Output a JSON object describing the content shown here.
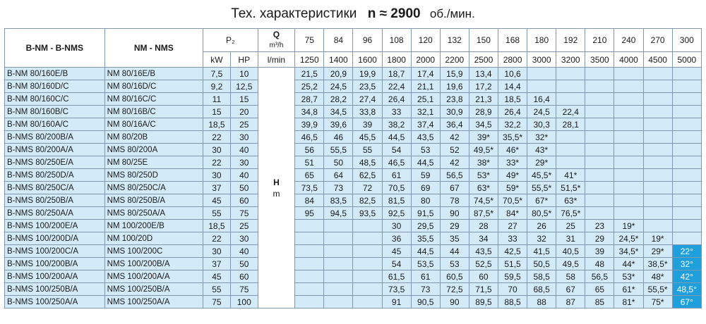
{
  "title": {
    "main": "Тех. характеристики",
    "rpm": "n ≈ 2900",
    "unit": "об./мин."
  },
  "header": {
    "model1": "B-NM - B-NMS",
    "model2": "NM - NMS",
    "p2": "P₂",
    "kw": "kW",
    "hp": "HP",
    "q": "Q",
    "q_unit": "m³/h",
    "lmin": "l/min",
    "h": "H",
    "h_unit": "m",
    "q_m3h": [
      "75",
      "84",
      "96",
      "108",
      "120",
      "132",
      "150",
      "168",
      "180",
      "192",
      "210",
      "240",
      "270",
      "300"
    ],
    "q_lmin": [
      "1250",
      "1400",
      "1600",
      "1800",
      "2000",
      "2200",
      "2500",
      "2800",
      "3000",
      "3200",
      "3500",
      "4000",
      "4500",
      "5000"
    ]
  },
  "highlight_color": "#1fa0dc",
  "rows": [
    {
      "m1": "B-NM 80/160E/B",
      "m2": "NM   80/16E/B",
      "kw": "7,5",
      "hp": "10",
      "v": [
        "21,5",
        "20,9",
        "19,9",
        "18,7",
        "17,4",
        "15,9",
        "13,4",
        "10,6",
        "",
        "",
        "",
        "",
        "",
        ""
      ]
    },
    {
      "m1": "B-NM 80/160D/C",
      "m2": "NM   80/16D/C",
      "kw": "9,2",
      "hp": "12,5",
      "v": [
        "25,2",
        "24,5",
        "23,5",
        "22,4",
        "21,1",
        "19,6",
        "17,2",
        "14,4",
        "",
        "",
        "",
        "",
        "",
        ""
      ]
    },
    {
      "m1": "B-NM 80/160C/C",
      "m2": "NM   80/16C/C",
      "kw": "11",
      "hp": "15",
      "v": [
        "28,7",
        "28,2",
        "27,4",
        "26,4",
        "25,1",
        "23,8",
        "21,3",
        "18,5",
        "16,4",
        "",
        "",
        "",
        "",
        ""
      ]
    },
    {
      "m1": "B-NM 80/160B/C",
      "m2": "NM   80/16B/C",
      "kw": "15",
      "hp": "20",
      "v": [
        "34,8",
        "34,5",
        "33,8",
        "33",
        "32,1",
        "30,9",
        "28,9",
        "26,4",
        "24,5",
        "22,4",
        "",
        "",
        "",
        ""
      ]
    },
    {
      "m1": "B-NM 80/160A/C",
      "m2": "NM   80/16A/C",
      "kw": "18,5",
      "hp": "25",
      "v": [
        "39,9",
        "39,6",
        "39",
        "38,2",
        "37,4",
        "36,4",
        "34,5",
        "32,2",
        "30,3",
        "28,1",
        "",
        "",
        "",
        ""
      ]
    },
    {
      "m1": "B-NMS 80/200B/A",
      "m2": "NM   80/20B",
      "kw": "22",
      "hp": "30",
      "v": [
        "46,5",
        "46",
        "45,5",
        "44,5",
        "43,5",
        "42",
        "39*",
        "35,5*",
        "32*",
        "",
        "",
        "",
        "",
        ""
      ]
    },
    {
      "m1": "B-NMS 80/200A/A",
      "m2": "NMS 80/200A",
      "kw": "30",
      "hp": "40",
      "v": [
        "56",
        "55,5",
        "55",
        "54",
        "53",
        "52",
        "49,5*",
        "46*",
        "43*",
        "",
        "",
        "",
        "",
        ""
      ]
    },
    {
      "m1": "B-NMS 80/250E/A",
      "m2": "NM   80/25E",
      "kw": "22",
      "hp": "30",
      "v": [
        "51",
        "50",
        "48,5",
        "46,5",
        "44,5",
        "42",
        "38*",
        "33*",
        "29*",
        "",
        "",
        "",
        "",
        ""
      ]
    },
    {
      "m1": "B-NMS 80/250D/A",
      "m2": "NMS 80/250D",
      "kw": "30",
      "hp": "40",
      "v": [
        "65",
        "64",
        "62,5",
        "61",
        "59",
        "56,5",
        "53*",
        "49*",
        "45,5*",
        "41*",
        "",
        "",
        "",
        ""
      ]
    },
    {
      "m1": "B-NMS 80/250C/A",
      "m2": "NMS 80/250C/A",
      "kw": "37",
      "hp": "50",
      "v": [
        "73,5",
        "73",
        "72",
        "70,5",
        "69",
        "67",
        "63*",
        "59*",
        "55,5*",
        "51,5*",
        "",
        "",
        "",
        ""
      ]
    },
    {
      "m1": "B-NMS 80/250B/A",
      "m2": "NMS 80/250B/A",
      "kw": "45",
      "hp": "60",
      "v": [
        "84",
        "83,5",
        "82,5",
        "81,5",
        "80",
        "78",
        "74,5*",
        "70,5*",
        "67*",
        "63*",
        "",
        "",
        "",
        ""
      ]
    },
    {
      "m1": "B-NMS 80/250A/A",
      "m2": "NMS 80/250A/A",
      "kw": "55",
      "hp": "75",
      "v": [
        "95",
        "94,5",
        "93,5",
        "92,5",
        "91,5",
        "90",
        "87,5*",
        "84*",
        "80,5*",
        "76,5*",
        "",
        "",
        "",
        ""
      ]
    },
    {
      "m1": "B-NMS 100/200E/A",
      "m2": "NM   100/200E/B",
      "kw": "18,5",
      "hp": "25",
      "v": [
        "",
        "",
        "",
        "30",
        "29,5",
        "29",
        "28",
        "27",
        "26",
        "25",
        "23",
        "19*",
        "",
        ""
      ]
    },
    {
      "m1": "B-NMS 100/200D/A",
      "m2": "NM   100/20D",
      "kw": "22",
      "hp": "30",
      "v": [
        "",
        "",
        "",
        "36",
        "35,5",
        "35",
        "34",
        "33",
        "32",
        "31",
        "29",
        "24,5*",
        "19*",
        ""
      ]
    },
    {
      "m1": "B-NMS 100/200C/A",
      "m2": "NMS 100/200C",
      "kw": "30",
      "hp": "40",
      "v": [
        "",
        "",
        "",
        "45",
        "44,5",
        "44",
        "43,5",
        "42,5",
        "41,5",
        "40,5",
        "39",
        "34,5*",
        "29*",
        "22°"
      ]
    },
    {
      "m1": "B-NMS 100/200B/A",
      "m2": "NMS 100/200B/A",
      "kw": "37",
      "hp": "50",
      "v": [
        "",
        "",
        "",
        "54",
        "53,5",
        "53",
        "52,5",
        "51,5",
        "50,5",
        "49,5",
        "48",
        "44*",
        "38,5*",
        "32°"
      ]
    },
    {
      "m1": "B-NMS 100/200A/A",
      "m2": "NMS 100/200A/A",
      "kw": "45",
      "hp": "60",
      "v": [
        "",
        "",
        "",
        "61,5",
        "61",
        "60,5",
        "60",
        "59,5",
        "58,5",
        "58",
        "56,5",
        "53*",
        "48*",
        "42°"
      ]
    },
    {
      "m1": "B-NMS 100/250B/A",
      "m2": "NMS 100/250B/A",
      "kw": "55",
      "hp": "75",
      "v": [
        "",
        "",
        "",
        "73,5",
        "73",
        "72,5",
        "71,5",
        "70",
        "68,5",
        "67",
        "65",
        "61*",
        "55,5*",
        "48,5°"
      ]
    },
    {
      "m1": "B-NMS 100/250A/A",
      "m2": "NMS 100/250A/A",
      "kw": "75",
      "hp": "100",
      "v": [
        "",
        "",
        "",
        "91",
        "90,5",
        "90",
        "89,5",
        "88,5",
        "88",
        "87",
        "85",
        "81*",
        "75*",
        "67°"
      ]
    }
  ]
}
